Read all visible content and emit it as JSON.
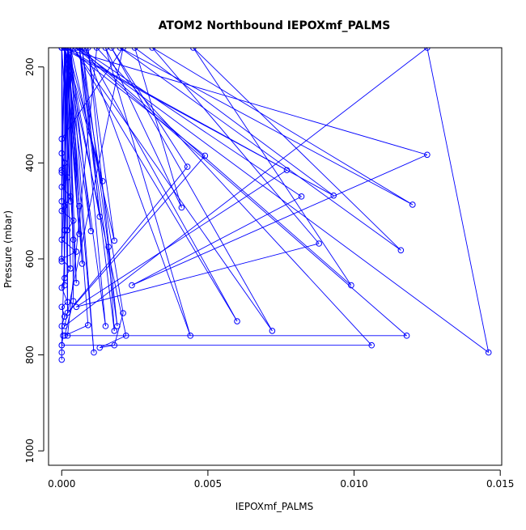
{
  "chart_data": {
    "type": "scatter",
    "title": "ATOM2 Northbound IEPOXmf_PALMS",
    "xlabel": "IEPOXmf_PALMS",
    "ylabel": "Pressure (mbar)",
    "xlim": [
      -0.00045,
      0.01505
    ],
    "ylim": [
      1030,
      160
    ],
    "y_reversed": true,
    "x_ticks": [
      0.0,
      0.005,
      0.01,
      0.015
    ],
    "x_tick_labels": [
      "0.000",
      "0.005",
      "0.010",
      "0.015"
    ],
    "y_ticks": [
      200,
      400,
      600,
      800,
      1000
    ],
    "y_tick_labels": [
      "200",
      "400",
      "600",
      "800",
      "1000"
    ],
    "grid": false,
    "legend": "none",
    "series": [
      {
        "color": "#0000ff",
        "points": [
          [
            0.0,
            810
          ],
          [
            0.0,
            795
          ],
          [
            0.0,
            780
          ],
          [
            5e-05,
            760
          ],
          [
            0.0,
            740
          ],
          [
            0.0001,
            720
          ],
          [
            0.0,
            700
          ],
          [
            0.0002,
            690
          ],
          [
            0.0,
            660
          ],
          [
            0.0001,
            640
          ],
          [
            0.0003,
            620
          ],
          [
            0.0,
            600
          ],
          [
            0.0005,
            585
          ],
          [
            0.0,
            560
          ],
          [
            0.0002,
            540
          ],
          [
            0.0004,
            520
          ],
          [
            0.0,
            500
          ],
          [
            0.0001,
            490
          ],
          [
            0.0003,
            470
          ],
          [
            0.0,
            450
          ],
          [
            0.0002,
            430
          ],
          [
            0.0,
            420
          ],
          [
            0.0001,
            400
          ],
          [
            0.0,
            380
          ],
          [
            0.0,
            350
          ],
          [
            0.0021,
            160
          ],
          [
            0.0001,
            740
          ],
          [
            0.0125,
            160
          ],
          [
            0.0146,
            795
          ],
          [
            0.0005,
            160
          ],
          [
            0.0118,
            760
          ],
          [
            0.0002,
            760
          ],
          [
            0.0012,
            160
          ],
          [
            0.0106,
            780
          ],
          [
            0.0,
            780
          ],
          [
            0.0003,
            160
          ],
          [
            0.0011,
            795
          ],
          [
            0.0002,
            160
          ],
          [
            0.0049,
            385
          ],
          [
            0.0001,
            720
          ],
          [
            0.0043,
            408
          ],
          [
            0.0017,
            160
          ],
          [
            0.0072,
            750
          ],
          [
            0.0004,
            160
          ],
          [
            0.006,
            730
          ],
          [
            0.0008,
            160
          ],
          [
            0.0044,
            760
          ],
          [
            0.0015,
            160
          ],
          [
            0.0041,
            493
          ],
          [
            0.0025,
            160
          ],
          [
            0.0093,
            468
          ],
          [
            0.0,
            160
          ],
          [
            0.0125,
            383
          ],
          [
            0.0024,
            655
          ],
          [
            0.0082,
            470
          ],
          [
            0.0006,
            160
          ],
          [
            0.0099,
            655
          ],
          [
            0.0045,
            160
          ],
          [
            0.0116,
            582
          ],
          [
            0.002,
            160
          ],
          [
            0.012,
            487
          ],
          [
            0.0031,
            160
          ],
          [
            0.0088,
            568
          ],
          [
            0.0005,
            700
          ],
          [
            0.0077,
            415
          ],
          [
            0.0001,
            160
          ],
          [
            0.0022,
            760
          ],
          [
            0.0013,
            785
          ],
          [
            0.0018,
            780
          ],
          [
            0.0021,
            713
          ],
          [
            0.0006,
            160
          ],
          [
            0.0018,
            750
          ],
          [
            0.0016,
            575
          ],
          [
            0.0007,
            160
          ],
          [
            0.0013,
            512
          ],
          [
            0.0002,
            160
          ],
          [
            0.0014,
            438
          ],
          [
            0.0001,
            160
          ],
          [
            0.001,
            542
          ],
          [
            0.0003,
            160
          ],
          [
            0.0018,
            562
          ],
          [
            0.0009,
            160
          ],
          [
            0.0019,
            740
          ],
          [
            0.0006,
            160
          ],
          [
            0.0015,
            740
          ],
          [
            0.0002,
            160
          ],
          [
            0.0009,
            738
          ],
          [
            0.0001,
            760
          ],
          [
            0.0004,
            688
          ],
          [
            0.0003,
            160
          ],
          [
            0.0007,
            610
          ],
          [
            0.0001,
            160
          ],
          [
            0.0006,
            548
          ],
          [
            0.0002,
            160
          ],
          [
            0.0006,
            490
          ],
          [
            0.0001,
            160
          ],
          [
            0.0003,
            480
          ],
          [
            0.0002,
            160
          ],
          [
            0.0004,
            560
          ],
          [
            0.0,
            160
          ],
          [
            0.0005,
            650
          ],
          [
            0.0002,
            160
          ],
          [
            0.0002,
            712
          ],
          [
            0.0001,
            160
          ],
          [
            0.0003,
            620
          ],
          [
            0.0001,
            160
          ],
          [
            0.0001,
            655
          ],
          [
            0.0,
            160
          ],
          [
            0.0,
            605
          ],
          [
            0.0002,
            160
          ],
          [
            0.0001,
            540
          ],
          [
            0.0001,
            160
          ],
          [
            0.0,
            480
          ],
          [
            0.0001,
            160
          ],
          [
            0.0,
            415
          ]
        ]
      }
    ]
  }
}
